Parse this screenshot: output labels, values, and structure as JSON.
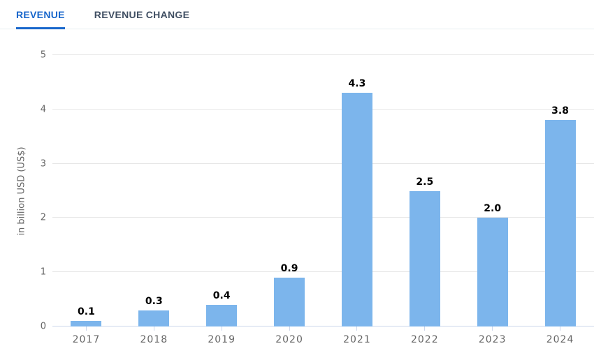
{
  "tabs": [
    {
      "label": "REVENUE",
      "active": true
    },
    {
      "label": "REVENUE CHANGE",
      "active": false
    }
  ],
  "chart_data": {
    "type": "bar",
    "title": "",
    "categories": [
      "2017",
      "2018",
      "2019",
      "2020",
      "2021",
      "2022",
      "2023",
      "2024"
    ],
    "values": [
      0.1,
      0.3,
      0.4,
      0.9,
      4.3,
      2.5,
      2.0,
      3.8
    ],
    "value_labels": [
      "0.1",
      "0.3",
      "0.4",
      "0.9",
      "4.3",
      "2.5",
      "2.0",
      "3.8"
    ],
    "xlabel": "",
    "ylabel": "in billion USD (US$)",
    "ylim": [
      0,
      5
    ],
    "yticks": [
      0,
      1,
      2,
      3,
      4,
      5
    ],
    "grid": true,
    "legend": "none",
    "bar_color": "#7cb5ec"
  },
  "colors": {
    "active_tab": "#1766cb",
    "inactive_tab": "#404f63",
    "tab_divider": "#e7eef0",
    "bar": "#7cb5ec",
    "gridline": "#e6e6e6",
    "axis_line": "#ccd6eb",
    "axis_label": "#666666",
    "data_label": "#000000"
  }
}
